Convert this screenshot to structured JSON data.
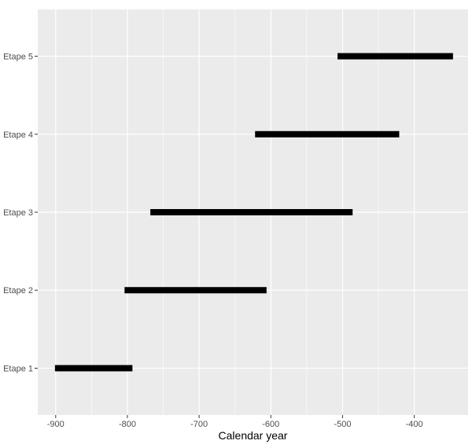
{
  "chart_data": {
    "type": "bar",
    "title": "",
    "xlabel": "Calendar year",
    "ylabel": "",
    "xlim": [
      -925,
      -325
    ],
    "x_ticks": [
      -900,
      -800,
      -700,
      -600,
      -500,
      -400
    ],
    "x_tick_labels": [
      "-900",
      "-800",
      "-700",
      "-600",
      "-500",
      "-400"
    ],
    "categories": [
      "Etape 1",
      "Etape 2",
      "Etape 3",
      "Etape 4",
      "Etape 5"
    ],
    "intervals": [
      {
        "label": "Etape 1",
        "start": -901,
        "end": -793
      },
      {
        "label": "Etape 2",
        "start": -804,
        "end": -606
      },
      {
        "label": "Etape 3",
        "start": -768,
        "end": -486
      },
      {
        "label": "Etape 4",
        "start": -622,
        "end": -421
      },
      {
        "label": "Etape 5",
        "start": -507,
        "end": -346
      }
    ],
    "grid": true,
    "legend": "none",
    "colors": {
      "panel": "#ebebeb",
      "grid": "#ffffff",
      "bar": "#000000"
    }
  }
}
